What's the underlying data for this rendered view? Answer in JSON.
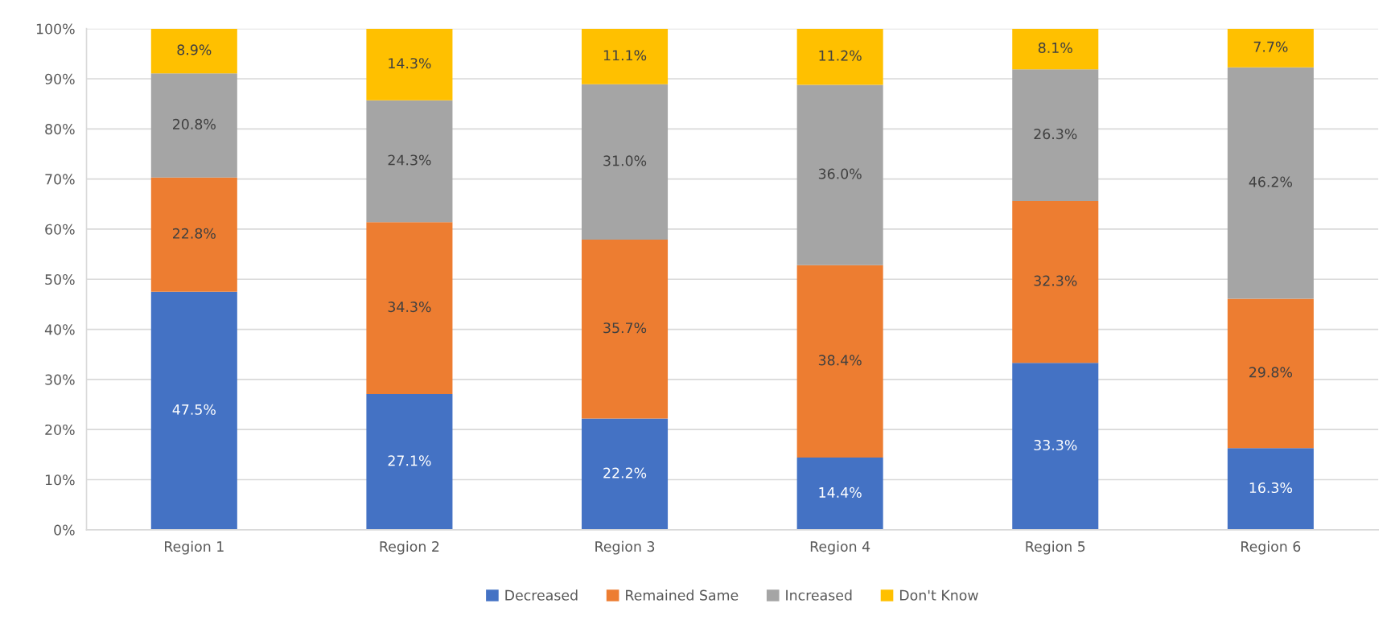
{
  "chart_data": {
    "type": "bar",
    "stacked": true,
    "categories": [
      "Region 1",
      "Region 2",
      "Region 3",
      "Region 4",
      "Region 5",
      "Region 6"
    ],
    "series": [
      {
        "name": "Decreased",
        "color": "#4472c4",
        "values": [
          47.5,
          27.1,
          22.2,
          14.4,
          33.3,
          16.3
        ],
        "value_labels": [
          "47.5%",
          "27.1%",
          "22.2%",
          "14.4%",
          "33.3%",
          "16.3%"
        ]
      },
      {
        "name": "Remained Same",
        "color": "#ed7d31",
        "values": [
          22.8,
          34.3,
          35.7,
          38.4,
          32.3,
          29.8
        ],
        "value_labels": [
          "22.8%",
          "34.3%",
          "35.7%",
          "38.4%",
          "32.3%",
          "29.8%"
        ]
      },
      {
        "name": "Increased",
        "color": "#a5a5a5",
        "values": [
          20.8,
          24.3,
          31.0,
          36.0,
          26.3,
          46.2
        ],
        "value_labels": [
          "20.8%",
          "24.3%",
          "31.0%",
          "36.0%",
          "26.3%",
          "46.2%"
        ]
      },
      {
        "name": "Don't Know",
        "color": "#ffc000",
        "values": [
          8.9,
          14.3,
          11.1,
          11.2,
          8.1,
          7.7
        ],
        "value_labels": [
          "8.9%",
          "14.3%",
          "11.1%",
          "11.2%",
          "8.1%",
          "7.7%"
        ]
      }
    ],
    "ylim": [
      0,
      100
    ],
    "yticks": [
      {
        "value": 0,
        "label": "0%"
      },
      {
        "value": 10,
        "label": "10%"
      },
      {
        "value": 20,
        "label": "20%"
      },
      {
        "value": 30,
        "label": "30%"
      },
      {
        "value": 40,
        "label": "40%"
      },
      {
        "value": 50,
        "label": "50%"
      },
      {
        "value": 60,
        "label": "60%"
      },
      {
        "value": 70,
        "label": "70%"
      },
      {
        "value": 80,
        "label": "80%"
      },
      {
        "value": 90,
        "label": "90%"
      },
      {
        "value": 100,
        "label": "100%"
      }
    ],
    "grid": "y",
    "legend": "bottom"
  }
}
